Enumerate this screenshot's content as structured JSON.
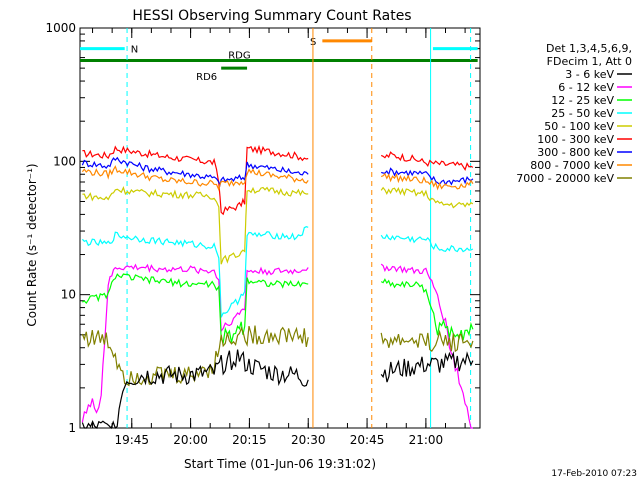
{
  "chart_data": {
    "type": "line",
    "title": "HESSI Observing Summary Count Rates",
    "xlabel": "Start Time (01-Jun-06 19:31:02)",
    "ylabel": "Count Rate (s⁻¹ detector⁻¹)",
    "footer": "17-Feb-2010 07:23",
    "yscale": "log",
    "ylim": [
      1,
      1000
    ],
    "xlim_minutes": [
      19.53,
      21.23
    ],
    "x_unit": "hours (decimal)",
    "yticks": [
      {
        "v": 1,
        "label": "1"
      },
      {
        "v": 10,
        "label": "10"
      },
      {
        "v": 100,
        "label": "100"
      },
      {
        "v": 1000,
        "label": "1000"
      }
    ],
    "xticks": [
      {
        "v": 19.75,
        "label": "19:45"
      },
      {
        "v": 20.0,
        "label": "20:00"
      },
      {
        "v": 20.25,
        "label": "20:15"
      },
      {
        "v": 20.5,
        "label": "20:30"
      },
      {
        "v": 20.75,
        "label": "20:45"
      },
      {
        "v": 21.0,
        "label": "21:00"
      }
    ],
    "legend": {
      "placement": "right",
      "header": [
        "Det 1,3,4,5,6,9,",
        "FDecim 1, Att 0"
      ],
      "items": [
        {
          "label": "3 - 6 keV",
          "color": "#000000"
        },
        {
          "label": "6 - 12 keV",
          "color": "#ff00ff"
        },
        {
          "label": "12 - 25 keV",
          "color": "#00ff00"
        },
        {
          "label": "25 - 50 keV",
          "color": "#00ffff"
        },
        {
          "label": "50 - 100 keV",
          "color": "#cccc00"
        },
        {
          "label": "100 - 300 keV",
          "color": "#ff0000"
        },
        {
          "label": "300 - 800 keV",
          "color": "#0000ff"
        },
        {
          "label": "800 - 7000 keV",
          "color": "#ff8800"
        },
        {
          "label": "7000 - 20000 keV",
          "color": "#808000"
        }
      ]
    },
    "flags": [
      {
        "label": "N",
        "color": "#00ffff",
        "y": 700,
        "segments": [
          [
            19.53,
            19.72
          ],
          [
            21.03,
            21.22
          ]
        ]
      },
      {
        "label": "S",
        "color": "#ff8800",
        "y": 800,
        "segments": [
          [
            20.56,
            20.77
          ]
        ]
      },
      {
        "label": "RDG",
        "color": "#008000",
        "y": 570,
        "segments": [
          [
            19.53,
            21.22
          ]
        ]
      },
      {
        "label": "RD6",
        "color": "#008000",
        "y": 500,
        "segments": [
          [
            20.13,
            20.24
          ]
        ]
      }
    ],
    "vlines": [
      {
        "x": 19.73,
        "color": "#00ffff",
        "style": "dashed"
      },
      {
        "x": 20.52,
        "color": "#ff8800",
        "style": "solid"
      },
      {
        "x": 20.77,
        "color": "#ff8800",
        "style": "dashed"
      },
      {
        "x": 21.02,
        "color": "#00ffff",
        "style": "solid"
      },
      {
        "x": 21.19,
        "color": "#00ffff",
        "style": "dashed"
      }
    ],
    "gap": [
      20.52,
      20.81
    ],
    "series": [
      {
        "name": "100 - 300 keV",
        "color": "#ff0000",
        "x": [
          19.54,
          19.65,
          19.68,
          19.8,
          19.9,
          20.0,
          20.1,
          20.12,
          20.13,
          20.2,
          20.23,
          20.24,
          20.35,
          20.45,
          20.5,
          20.81,
          20.85,
          20.95,
          21.0,
          21.05,
          21.15,
          21.2
        ],
        "values": [
          115,
          110,
          125,
          115,
          108,
          103,
          98,
          70,
          42,
          46,
          50,
          125,
          118,
          110,
          105,
          105,
          112,
          104,
          98,
          96,
          93,
          90
        ]
      },
      {
        "name": "300 - 800 keV",
        "color": "#0000ff",
        "x": [
          19.54,
          19.65,
          19.68,
          19.8,
          19.9,
          20.0,
          20.1,
          20.12,
          20.13,
          20.2,
          20.23,
          20.24,
          20.35,
          20.45,
          20.5,
          20.81,
          20.85,
          20.95,
          21.0,
          21.05,
          21.15,
          21.2
        ],
        "values": [
          98,
          92,
          105,
          90,
          84,
          80,
          75,
          68,
          72,
          74,
          76,
          95,
          88,
          82,
          80,
          86,
          84,
          82,
          80,
          70,
          72,
          74
        ]
      },
      {
        "name": "800 - 7000 keV",
        "color": "#ff8800",
        "x": [
          19.54,
          19.65,
          19.68,
          19.8,
          19.9,
          20.0,
          20.1,
          20.12,
          20.13,
          20.2,
          20.23,
          20.24,
          20.35,
          20.45,
          20.5,
          20.81,
          20.85,
          20.95,
          21.0,
          21.05,
          21.15,
          21.2
        ],
        "values": [
          85,
          80,
          88,
          78,
          72,
          70,
          68,
          64,
          68,
          70,
          72,
          85,
          78,
          74,
          72,
          78,
          76,
          73,
          71,
          65,
          66,
          68
        ]
      },
      {
        "name": "50 - 100 keV",
        "color": "#cccc00",
        "x": [
          19.54,
          19.65,
          19.68,
          19.8,
          19.9,
          20.0,
          20.1,
          20.12,
          20.13,
          20.2,
          20.23,
          20.24,
          20.35,
          20.45,
          20.5,
          20.81,
          20.85,
          20.95,
          21.0,
          21.05,
          21.15,
          21.2
        ],
        "values": [
          56,
          52,
          62,
          58,
          57,
          56,
          55,
          45,
          18,
          20,
          22,
          62,
          60,
          58,
          57,
          60,
          61,
          58,
          57,
          48,
          47,
          48
        ]
      },
      {
        "name": "25 - 50 keV",
        "color": "#00ffff",
        "x": [
          19.54,
          19.65,
          19.68,
          19.8,
          19.9,
          20.0,
          20.1,
          20.12,
          20.13,
          20.2,
          20.23,
          20.24,
          20.35,
          20.45,
          20.5,
          20.81,
          20.85,
          20.95,
          21.0,
          21.05,
          21.15,
          21.2
        ],
        "values": [
          25,
          24,
          28,
          26,
          25,
          24,
          23,
          20,
          7,
          9,
          11,
          28,
          28,
          27,
          32,
          27,
          27,
          26,
          26,
          22,
          22,
          22
        ]
      },
      {
        "name": "6 - 12 keV",
        "color": "#ff00ff",
        "x": [
          19.54,
          19.6,
          19.62,
          19.65,
          19.68,
          19.8,
          19.9,
          20.0,
          20.1,
          20.12,
          20.13,
          20.2,
          20.23,
          20.24,
          20.35,
          20.45,
          20.5,
          20.81,
          20.85,
          20.95,
          21.0,
          21.05,
          21.15,
          21.2
        ],
        "values": [
          1.3,
          1.5,
          1.8,
          12,
          16,
          16,
          15.5,
          15.5,
          15,
          13,
          5.5,
          7,
          8,
          15,
          15,
          15,
          16,
          16,
          16,
          15,
          15,
          10,
          2,
          1
        ]
      },
      {
        "name": "12 - 25 keV",
        "color": "#00ff00",
        "x": [
          19.54,
          19.65,
          19.68,
          19.8,
          19.9,
          20.0,
          20.1,
          20.12,
          20.13,
          20.2,
          20.23,
          20.24,
          20.35,
          20.45,
          20.5,
          20.81,
          20.85,
          20.95,
          21.0,
          21.05,
          21.15,
          21.2
        ],
        "values": [
          9,
          10,
          14,
          13,
          12.5,
          12,
          12,
          11,
          4.5,
          5.5,
          6,
          13,
          12,
          12,
          12,
          13,
          12,
          12,
          11,
          5.5,
          5.5,
          5.5
        ]
      },
      {
        "name": "7000 - 20000 keV",
        "color": "#808000",
        "x": [
          19.54,
          19.65,
          19.68,
          19.72,
          19.8,
          19.9,
          20.0,
          20.1,
          20.13,
          20.2,
          20.24,
          20.35,
          20.45,
          20.5,
          20.81,
          20.9,
          21.0,
          21.05,
          21.15,
          21.2
        ],
        "values": [
          5,
          4.5,
          3.5,
          2.5,
          2.5,
          2.5,
          2.5,
          3.0,
          4.5,
          5.0,
          5.0,
          5.0,
          5.0,
          4.8,
          4.5,
          4.5,
          4.5,
          4.5,
          4.5,
          4.5
        ]
      },
      {
        "name": "3 - 6 keV",
        "color": "#000000",
        "x": [
          19.54,
          19.68,
          19.72,
          19.8,
          19.9,
          20.0,
          20.1,
          20.13,
          20.2,
          20.24,
          20.35,
          20.45,
          20.5,
          20.81,
          20.9,
          21.0,
          21.05,
          21.15,
          21.2
        ],
        "values": [
          1.0,
          1.0,
          2.3,
          2.5,
          2.5,
          2.5,
          2.6,
          3.0,
          3.5,
          3.0,
          2.6,
          2.5,
          2.3,
          2.6,
          2.8,
          3.0,
          3.0,
          3.2,
          3.2
        ]
      }
    ]
  }
}
